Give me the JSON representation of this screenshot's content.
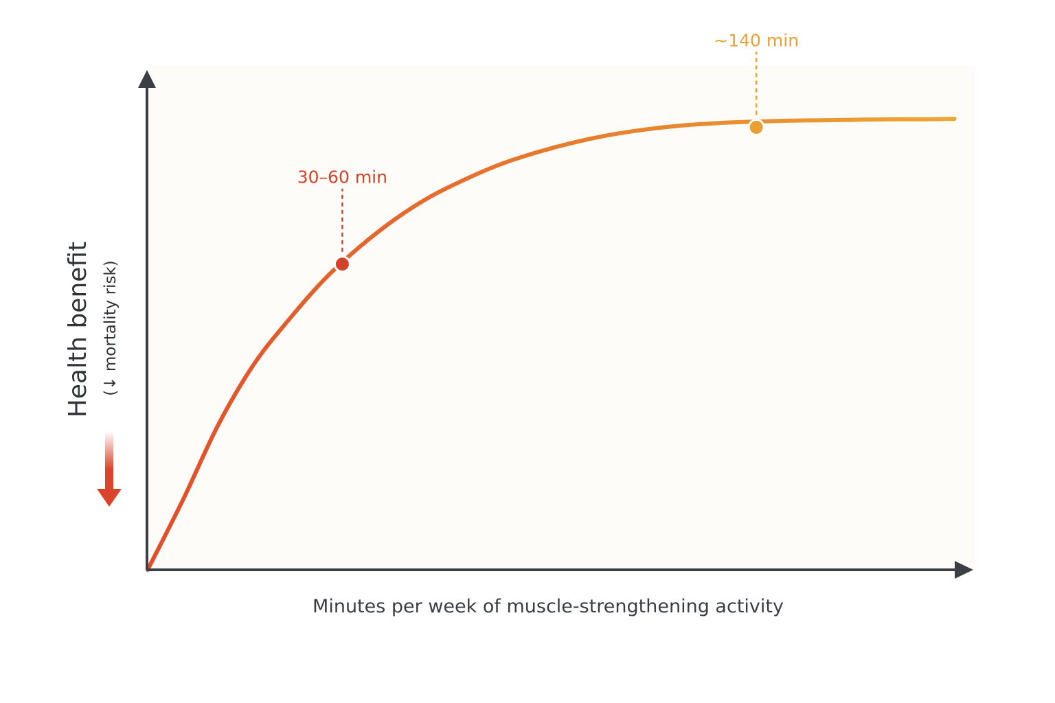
{
  "chart_data": {
    "type": "line",
    "title": "",
    "xlabel": "Minutes per week of muscle-strengthening activity",
    "ylabel": "Health benefit",
    "ylabel_sub": "(↓ mortality risk)",
    "grid": false,
    "x_ticks_shown": false,
    "y_ticks_shown": false,
    "xlim": [
      0,
      230
    ],
    "ylim": [
      0,
      1
    ],
    "series": [
      {
        "x": [
          0,
          10,
          20,
          30,
          40,
          50,
          60,
          70,
          80,
          90,
          100,
          110,
          120,
          130,
          140,
          150,
          160,
          170,
          180,
          190,
          200,
          210,
          220,
          228
        ],
        "y": [
          0,
          0.14,
          0.29,
          0.41,
          0.5,
          0.58,
          0.645,
          0.7,
          0.745,
          0.78,
          0.81,
          0.833,
          0.852,
          0.867,
          0.878,
          0.886,
          0.891,
          0.894,
          0.896,
          0.897,
          0.898,
          0.899,
          0.899,
          0.9
        ]
      }
    ],
    "annotations": [
      {
        "label": "30–60 min",
        "x": 55,
        "y": 0.61,
        "color": "#D2442A"
      },
      {
        "label": "~140 min",
        "x": 172,
        "y": 0.883,
        "color": "#E8A030"
      }
    ],
    "colors": {
      "curve_start": "#E04E2A",
      "curve_end": "#EDA733",
      "axis": "#3b3f45",
      "plot_background": "#FDFCF8",
      "down_arrow": "#D9442A"
    }
  }
}
